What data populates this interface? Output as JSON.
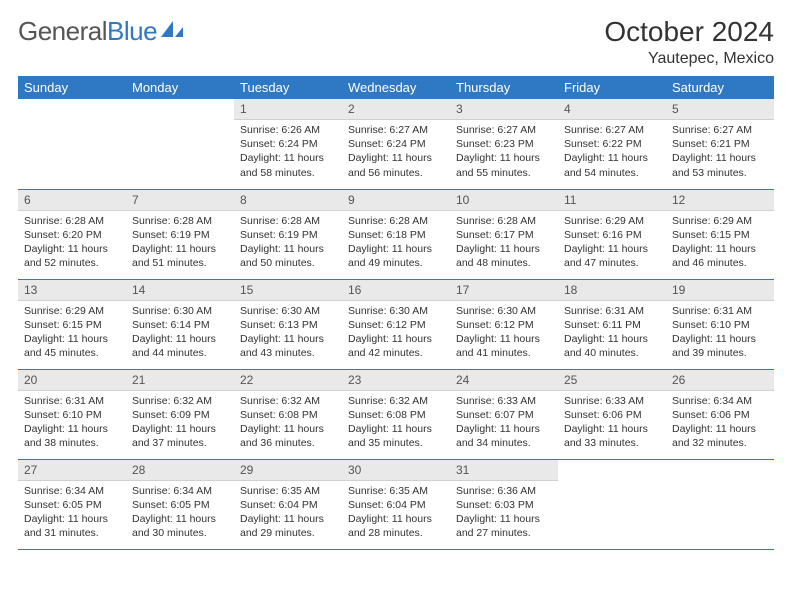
{
  "brand": {
    "name_part1": "General",
    "name_part2": "Blue",
    "accent_color": "#2f78c4"
  },
  "title": "October 2024",
  "location": "Yautepec, Mexico",
  "colors": {
    "header_bg": "#2f78c4",
    "header_text": "#ffffff",
    "daynum_bg": "#e9e9e9",
    "row_divider": "#2f78c4",
    "body_text": "#333333"
  },
  "day_headers": [
    "Sunday",
    "Monday",
    "Tuesday",
    "Wednesday",
    "Thursday",
    "Friday",
    "Saturday"
  ],
  "weeks": [
    [
      {
        "n": "",
        "lines": [
          "",
          "",
          "",
          ""
        ]
      },
      {
        "n": "",
        "lines": [
          "",
          "",
          "",
          ""
        ]
      },
      {
        "n": "1",
        "lines": [
          "Sunrise: 6:26 AM",
          "Sunset: 6:24 PM",
          "Daylight: 11 hours",
          "and 58 minutes."
        ]
      },
      {
        "n": "2",
        "lines": [
          "Sunrise: 6:27 AM",
          "Sunset: 6:24 PM",
          "Daylight: 11 hours",
          "and 56 minutes."
        ]
      },
      {
        "n": "3",
        "lines": [
          "Sunrise: 6:27 AM",
          "Sunset: 6:23 PM",
          "Daylight: 11 hours",
          "and 55 minutes."
        ]
      },
      {
        "n": "4",
        "lines": [
          "Sunrise: 6:27 AM",
          "Sunset: 6:22 PM",
          "Daylight: 11 hours",
          "and 54 minutes."
        ]
      },
      {
        "n": "5",
        "lines": [
          "Sunrise: 6:27 AM",
          "Sunset: 6:21 PM",
          "Daylight: 11 hours",
          "and 53 minutes."
        ]
      }
    ],
    [
      {
        "n": "6",
        "lines": [
          "Sunrise: 6:28 AM",
          "Sunset: 6:20 PM",
          "Daylight: 11 hours",
          "and 52 minutes."
        ]
      },
      {
        "n": "7",
        "lines": [
          "Sunrise: 6:28 AM",
          "Sunset: 6:19 PM",
          "Daylight: 11 hours",
          "and 51 minutes."
        ]
      },
      {
        "n": "8",
        "lines": [
          "Sunrise: 6:28 AM",
          "Sunset: 6:19 PM",
          "Daylight: 11 hours",
          "and 50 minutes."
        ]
      },
      {
        "n": "9",
        "lines": [
          "Sunrise: 6:28 AM",
          "Sunset: 6:18 PM",
          "Daylight: 11 hours",
          "and 49 minutes."
        ]
      },
      {
        "n": "10",
        "lines": [
          "Sunrise: 6:28 AM",
          "Sunset: 6:17 PM",
          "Daylight: 11 hours",
          "and 48 minutes."
        ]
      },
      {
        "n": "11",
        "lines": [
          "Sunrise: 6:29 AM",
          "Sunset: 6:16 PM",
          "Daylight: 11 hours",
          "and 47 minutes."
        ]
      },
      {
        "n": "12",
        "lines": [
          "Sunrise: 6:29 AM",
          "Sunset: 6:15 PM",
          "Daylight: 11 hours",
          "and 46 minutes."
        ]
      }
    ],
    [
      {
        "n": "13",
        "lines": [
          "Sunrise: 6:29 AM",
          "Sunset: 6:15 PM",
          "Daylight: 11 hours",
          "and 45 minutes."
        ]
      },
      {
        "n": "14",
        "lines": [
          "Sunrise: 6:30 AM",
          "Sunset: 6:14 PM",
          "Daylight: 11 hours",
          "and 44 minutes."
        ]
      },
      {
        "n": "15",
        "lines": [
          "Sunrise: 6:30 AM",
          "Sunset: 6:13 PM",
          "Daylight: 11 hours",
          "and 43 minutes."
        ]
      },
      {
        "n": "16",
        "lines": [
          "Sunrise: 6:30 AM",
          "Sunset: 6:12 PM",
          "Daylight: 11 hours",
          "and 42 minutes."
        ]
      },
      {
        "n": "17",
        "lines": [
          "Sunrise: 6:30 AM",
          "Sunset: 6:12 PM",
          "Daylight: 11 hours",
          "and 41 minutes."
        ]
      },
      {
        "n": "18",
        "lines": [
          "Sunrise: 6:31 AM",
          "Sunset: 6:11 PM",
          "Daylight: 11 hours",
          "and 40 minutes."
        ]
      },
      {
        "n": "19",
        "lines": [
          "Sunrise: 6:31 AM",
          "Sunset: 6:10 PM",
          "Daylight: 11 hours",
          "and 39 minutes."
        ]
      }
    ],
    [
      {
        "n": "20",
        "lines": [
          "Sunrise: 6:31 AM",
          "Sunset: 6:10 PM",
          "Daylight: 11 hours",
          "and 38 minutes."
        ]
      },
      {
        "n": "21",
        "lines": [
          "Sunrise: 6:32 AM",
          "Sunset: 6:09 PM",
          "Daylight: 11 hours",
          "and 37 minutes."
        ]
      },
      {
        "n": "22",
        "lines": [
          "Sunrise: 6:32 AM",
          "Sunset: 6:08 PM",
          "Daylight: 11 hours",
          "and 36 minutes."
        ]
      },
      {
        "n": "23",
        "lines": [
          "Sunrise: 6:32 AM",
          "Sunset: 6:08 PM",
          "Daylight: 11 hours",
          "and 35 minutes."
        ]
      },
      {
        "n": "24",
        "lines": [
          "Sunrise: 6:33 AM",
          "Sunset: 6:07 PM",
          "Daylight: 11 hours",
          "and 34 minutes."
        ]
      },
      {
        "n": "25",
        "lines": [
          "Sunrise: 6:33 AM",
          "Sunset: 6:06 PM",
          "Daylight: 11 hours",
          "and 33 minutes."
        ]
      },
      {
        "n": "26",
        "lines": [
          "Sunrise: 6:34 AM",
          "Sunset: 6:06 PM",
          "Daylight: 11 hours",
          "and 32 minutes."
        ]
      }
    ],
    [
      {
        "n": "27",
        "lines": [
          "Sunrise: 6:34 AM",
          "Sunset: 6:05 PM",
          "Daylight: 11 hours",
          "and 31 minutes."
        ]
      },
      {
        "n": "28",
        "lines": [
          "Sunrise: 6:34 AM",
          "Sunset: 6:05 PM",
          "Daylight: 11 hours",
          "and 30 minutes."
        ]
      },
      {
        "n": "29",
        "lines": [
          "Sunrise: 6:35 AM",
          "Sunset: 6:04 PM",
          "Daylight: 11 hours",
          "and 29 minutes."
        ]
      },
      {
        "n": "30",
        "lines": [
          "Sunrise: 6:35 AM",
          "Sunset: 6:04 PM",
          "Daylight: 11 hours",
          "and 28 minutes."
        ]
      },
      {
        "n": "31",
        "lines": [
          "Sunrise: 6:36 AM",
          "Sunset: 6:03 PM",
          "Daylight: 11 hours",
          "and 27 minutes."
        ]
      },
      {
        "n": "",
        "lines": [
          "",
          "",
          "",
          ""
        ]
      },
      {
        "n": "",
        "lines": [
          "",
          "",
          "",
          ""
        ]
      }
    ]
  ]
}
